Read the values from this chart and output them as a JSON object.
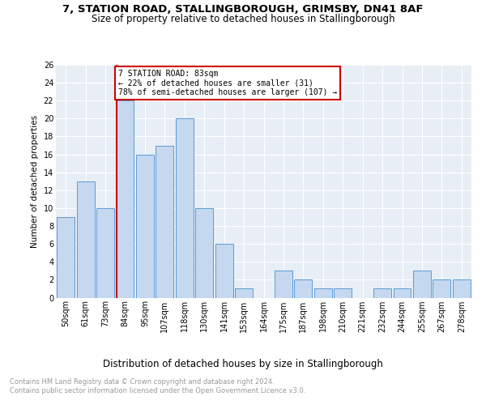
{
  "title1": "7, STATION ROAD, STALLINGBOROUGH, GRIMSBY, DN41 8AF",
  "title2": "Size of property relative to detached houses in Stallingborough",
  "xlabel": "Distribution of detached houses by size in Stallingborough",
  "ylabel": "Number of detached properties",
  "footnote": "Contains HM Land Registry data © Crown copyright and database right 2024.\nContains public sector information licensed under the Open Government Licence v3.0.",
  "categories": [
    "50sqm",
    "61sqm",
    "73sqm",
    "84sqm",
    "95sqm",
    "107sqm",
    "118sqm",
    "130sqm",
    "141sqm",
    "153sqm",
    "164sqm",
    "175sqm",
    "187sqm",
    "198sqm",
    "210sqm",
    "221sqm",
    "232sqm",
    "244sqm",
    "255sqm",
    "267sqm",
    "278sqm"
  ],
  "values": [
    9,
    13,
    10,
    22,
    16,
    17,
    20,
    10,
    6,
    1,
    0,
    3,
    2,
    1,
    1,
    0,
    1,
    1,
    3,
    2,
    2
  ],
  "bar_color": "#c5d8f0",
  "bar_edge_color": "#5b9bd5",
  "ref_line_x": 3,
  "ref_line_color": "#cc0000",
  "annotation_text": "7 STATION ROAD: 83sqm\n← 22% of detached houses are smaller (31)\n78% of semi-detached houses are larger (107) →",
  "annotation_box_color": "#ffffff",
  "annotation_box_edge_color": "#cc0000",
  "ylim": [
    0,
    26
  ],
  "yticks": [
    0,
    2,
    4,
    6,
    8,
    10,
    12,
    14,
    16,
    18,
    20,
    22,
    24,
    26
  ],
  "plot_bg_color": "#e8eef5",
  "fig_bg_color": "#ffffff",
  "title1_fontsize": 9.5,
  "title2_fontsize": 8.5,
  "xlabel_fontsize": 8.5,
  "ylabel_fontsize": 7.5,
  "tick_fontsize": 7,
  "annotation_fontsize": 7,
  "footnote_fontsize": 6,
  "footnote_color": "#999999"
}
